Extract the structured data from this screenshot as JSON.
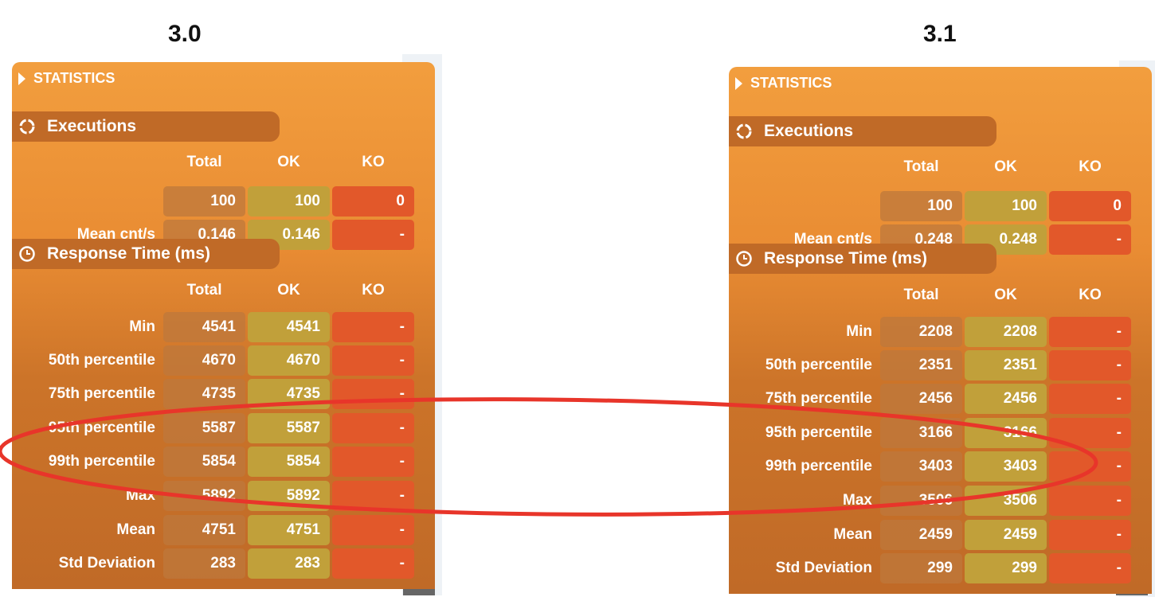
{
  "versions": [
    "3.0",
    "3.1"
  ],
  "colors": {
    "panel_top": "#f29e3e",
    "panel_bottom": "#c06a27",
    "ok": "#c1a03a",
    "ko": "#e2582a",
    "highlight": "#e8352a"
  },
  "panels": [
    {
      "version": "3.0",
      "title": "STATISTICS",
      "executions": {
        "label": "Executions",
        "icon": "refresh-icon",
        "headers": [
          "Total",
          "OK",
          "KO"
        ],
        "rows": [
          {
            "label": "",
            "total": "100",
            "ok": "100",
            "ko": "0"
          },
          {
            "label": "Mean cnt/s",
            "total": "0.146",
            "ok": "0.146",
            "ko": "-"
          }
        ]
      },
      "response_time": {
        "label": "Response Time (ms)",
        "icon": "clock-icon",
        "headers": [
          "Total",
          "OK",
          "KO"
        ],
        "rows": [
          {
            "label": "Min",
            "total": "4541",
            "ok": "4541",
            "ko": "-"
          },
          {
            "label": "50th percentile",
            "total": "4670",
            "ok": "4670",
            "ko": "-"
          },
          {
            "label": "75th percentile",
            "total": "4735",
            "ok": "4735",
            "ko": "-"
          },
          {
            "label": "95th percentile",
            "total": "5587",
            "ok": "5587",
            "ko": "-"
          },
          {
            "label": "99th percentile",
            "total": "5854",
            "ok": "5854",
            "ko": "-"
          },
          {
            "label": "Max",
            "total": "5892",
            "ok": "5892",
            "ko": "-"
          },
          {
            "label": "Mean",
            "total": "4751",
            "ok": "4751",
            "ko": "-"
          },
          {
            "label": "Std Deviation",
            "total": "283",
            "ok": "283",
            "ko": "-"
          }
        ]
      }
    },
    {
      "version": "3.1",
      "title": "STATISTICS",
      "executions": {
        "label": "Executions",
        "icon": "refresh-icon",
        "headers": [
          "Total",
          "OK",
          "KO"
        ],
        "rows": [
          {
            "label": "",
            "total": "100",
            "ok": "100",
            "ko": "0"
          },
          {
            "label": "Mean cnt/s",
            "total": "0.248",
            "ok": "0.248",
            "ko": "-"
          }
        ]
      },
      "response_time": {
        "label": "Response Time (ms)",
        "icon": "clock-icon",
        "headers": [
          "Total",
          "OK",
          "KO"
        ],
        "rows": [
          {
            "label": "Min",
            "total": "2208",
            "ok": "2208",
            "ko": "-"
          },
          {
            "label": "50th percentile",
            "total": "2351",
            "ok": "2351",
            "ko": "-"
          },
          {
            "label": "75th percentile",
            "total": "2456",
            "ok": "2456",
            "ko": "-"
          },
          {
            "label": "95th percentile",
            "total": "3166",
            "ok": "3166",
            "ko": "-"
          },
          {
            "label": "99th percentile",
            "total": "3403",
            "ok": "3403",
            "ko": "-"
          },
          {
            "label": "Max",
            "total": "3506",
            "ok": "3506",
            "ko": "-"
          },
          {
            "label": "Mean",
            "total": "2459",
            "ok": "2459",
            "ko": "-"
          },
          {
            "label": "Std Deviation",
            "total": "299",
            "ok": "299",
            "ko": "-"
          }
        ]
      }
    }
  ]
}
